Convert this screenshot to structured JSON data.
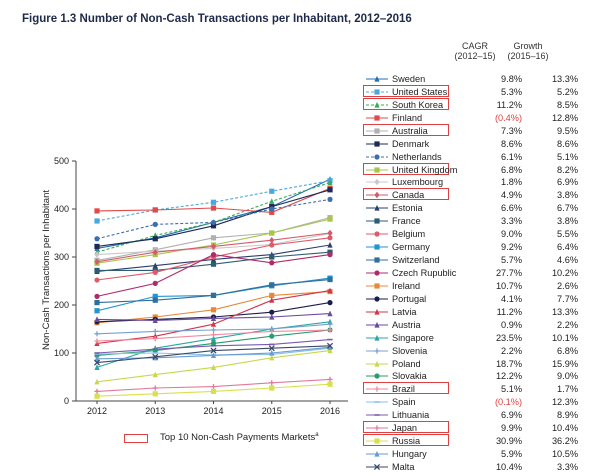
{
  "figure_title": "Figure 1.3 Number of Non-Cash Transactions per Inhabitant, 2012–2016",
  "columns": {
    "cagr": [
      "CAGR",
      "(2012–15)"
    ],
    "growth": [
      "Growth",
      "(2015–16)"
    ]
  },
  "top10_label": "Top 10 Non-Cash Payments Markets",
  "top10_footnote": "a",
  "chart_data": {
    "type": "line",
    "x": [
      2012,
      2013,
      2014,
      2015,
      2016
    ],
    "ylabel": "Non-Cash Transactions per Inhabitant",
    "ylim": [
      0,
      500
    ],
    "yticks": [
      0,
      100,
      200,
      300,
      400,
      500
    ],
    "grid": false,
    "legend_placement": "right",
    "series": [
      {
        "name": "Sweden",
        "cagr": "9.8%",
        "growth": "13.3%",
        "top10": false,
        "color": "#1f6fb4",
        "marker": "triangle",
        "dashed": false,
        "values": [
          318,
          340,
          372,
          405,
          462
        ]
      },
      {
        "name": "United States",
        "cagr": "5.3%",
        "growth": "5.2%",
        "top10": true,
        "color": "#4aa8e0",
        "marker": "square",
        "dashed": true,
        "values": [
          375,
          398,
          414,
          437,
          459
        ]
      },
      {
        "name": "South Korea",
        "cagr": "11.2%",
        "growth": "8.5%",
        "top10": true,
        "color": "#3aaa55",
        "marker": "triangle",
        "dashed": true,
        "values": [
          310,
          345,
          372,
          416,
          455
        ]
      },
      {
        "name": "Finland",
        "cagr": "(0.4%)",
        "growth": "12.8%",
        "top10": false,
        "color": "#e04a4a",
        "marker": "square",
        "dashed": false,
        "values": [
          396,
          398,
          402,
          393,
          443
        ]
      },
      {
        "name": "Australia",
        "cagr": "7.3%",
        "growth": "9.5%",
        "top10": true,
        "color": "#b0b0b0",
        "marker": "square",
        "dashed": false,
        "values": [
          293,
          315,
          340,
          350,
          382
        ]
      },
      {
        "name": "Denmark",
        "cagr": "8.6%",
        "growth": "8.6%",
        "top10": false,
        "color": "#1c2a55",
        "marker": "square",
        "dashed": false,
        "values": [
          322,
          338,
          365,
          405,
          440
        ]
      },
      {
        "name": "Netherlands",
        "cagr": "6.1%",
        "growth": "5.1%",
        "top10": false,
        "color": "#3d6fb0",
        "marker": "circle",
        "dashed": true,
        "values": [
          338,
          368,
          372,
          400,
          420
        ]
      },
      {
        "name": "United Kingdom",
        "cagr": "6.8%",
        "growth": "8.2%",
        "top10": true,
        "color": "#a6c64a",
        "marker": "square",
        "dashed": false,
        "values": [
          287,
          305,
          325,
          350,
          379
        ]
      },
      {
        "name": "Luxembourg",
        "cagr": "1.8%",
        "growth": "6.9%",
        "top10": false,
        "color": "#c8c8c8",
        "marker": "diamond",
        "dashed": false,
        "values": [
          305,
          312,
          318,
          326,
          349
        ]
      },
      {
        "name": "Canada",
        "cagr": "4.9%",
        "growth": "3.8%",
        "top10": true,
        "color": "#d65a6a",
        "marker": "diamond",
        "dashed": false,
        "values": [
          290,
          310,
          322,
          335,
          350
        ]
      },
      {
        "name": "Estonia",
        "cagr": "6.6%",
        "growth": "6.7%",
        "top10": false,
        "color": "#2a3f6e",
        "marker": "triangle",
        "dashed": false,
        "values": [
          270,
          282,
          295,
          305,
          325
        ]
      },
      {
        "name": "France",
        "cagr": "3.3%",
        "growth": "3.8%",
        "top10": false,
        "color": "#2e5d73",
        "marker": "square",
        "dashed": false,
        "values": [
          272,
          272,
          285,
          300,
          310
        ]
      },
      {
        "name": "Belgium",
        "cagr": "9.0%",
        "growth": "5.5%",
        "top10": false,
        "color": "#e05a6a",
        "marker": "circle",
        "dashed": false,
        "values": [
          252,
          268,
          300,
          325,
          340
        ]
      },
      {
        "name": "Germany",
        "cagr": "9.2%",
        "growth": "6.4%",
        "top10": false,
        "color": "#2196d3",
        "marker": "square",
        "dashed": false,
        "values": [
          188,
          218,
          220,
          240,
          256
        ]
      },
      {
        "name": "Switzerland",
        "cagr": "5.7%",
        "growth": "4.6%",
        "top10": false,
        "color": "#2f6f9c",
        "marker": "square",
        "dashed": false,
        "values": [
          205,
          210,
          220,
          242,
          253
        ]
      },
      {
        "name": "Czech Rupublic",
        "cagr": "27.7%",
        "growth": "10.2%",
        "top10": false,
        "color": "#b02a6a",
        "marker": "circle",
        "dashed": false,
        "values": [
          218,
          245,
          305,
          288,
          305
        ]
      },
      {
        "name": "Ireland",
        "cagr": "10.7%",
        "growth": "2.6%",
        "top10": false,
        "color": "#e8883a",
        "marker": "square",
        "dashed": false,
        "values": [
          163,
          175,
          190,
          220,
          228
        ]
      },
      {
        "name": "Portugal",
        "cagr": "4.1%",
        "growth": "7.7%",
        "top10": false,
        "color": "#1a1f4a",
        "marker": "circle",
        "dashed": false,
        "values": [
          165,
          170,
          175,
          185,
          205
        ]
      },
      {
        "name": "Latvia",
        "cagr": "11.2%",
        "growth": "13.3%",
        "top10": false,
        "color": "#d0364a",
        "marker": "triangle",
        "dashed": false,
        "values": [
          120,
          135,
          160,
          210,
          230
        ]
      },
      {
        "name": "Austria",
        "cagr": "0.9%",
        "growth": "2.2%",
        "top10": false,
        "color": "#6a4aa0",
        "marker": "triangle",
        "dashed": false,
        "values": [
          170,
          168,
          172,
          175,
          182
        ]
      },
      {
        "name": "Singapore",
        "cagr": "23.5%",
        "growth": "10.1%",
        "top10": false,
        "color": "#2aa8a0",
        "marker": "triangle",
        "dashed": false,
        "values": [
          70,
          110,
          130,
          150,
          165
        ]
      },
      {
        "name": "Slovenia",
        "cagr": "2.2%",
        "growth": "6.8%",
        "top10": false,
        "color": "#7aa0cf",
        "marker": "plus",
        "dashed": false,
        "values": [
          140,
          145,
          148,
          150,
          160
        ]
      },
      {
        "name": "Poland",
        "cagr": "18.7%",
        "growth": "15.9%",
        "top10": false,
        "color": "#c8d84a",
        "marker": "triangle",
        "dashed": false,
        "values": [
          40,
          55,
          70,
          90,
          105
        ]
      },
      {
        "name": "Slovakia",
        "cagr": "12.2%",
        "growth": "9.0%",
        "top10": false,
        "color": "#2a9a70",
        "marker": "circle",
        "dashed": false,
        "values": [
          95,
          105,
          120,
          135,
          148
        ]
      },
      {
        "name": "Brazil",
        "cagr": "5.1%",
        "growth": "1.7%",
        "top10": true,
        "color": "#f08aa0",
        "marker": "plus",
        "dashed": false,
        "values": [
          125,
          130,
          138,
          145,
          148
        ]
      },
      {
        "name": "Spain",
        "cagr": "(0.1%)",
        "growth": "12.3%",
        "top10": false,
        "color": "#8ac0e8",
        "marker": "dash",
        "dashed": false,
        "values": [
          98,
          100,
          96,
          97,
          110
        ]
      },
      {
        "name": "Lithuania",
        "cagr": "6.9%",
        "growth": "8.9%",
        "top10": false,
        "color": "#7a5ab0",
        "marker": "dash",
        "dashed": false,
        "values": [
          100,
          108,
          115,
          118,
          128
        ]
      },
      {
        "name": "Japan",
        "cagr": "9.9%",
        "growth": "10.4%",
        "top10": true,
        "color": "#e07a9a",
        "marker": "plus",
        "dashed": false,
        "values": [
          20,
          27,
          30,
          38,
          45
        ]
      },
      {
        "name": "Russia",
        "cagr": "30.9%",
        "growth": "36.2%",
        "top10": true,
        "color": "#d8e050",
        "marker": "square",
        "dashed": false,
        "values": [
          10,
          15,
          20,
          27,
          35
        ]
      },
      {
        "name": "Hungary",
        "cagr": "5.9%",
        "growth": "10.5%",
        "top10": false,
        "color": "#6a9ad0",
        "marker": "triangle",
        "dashed": false,
        "values": [
          88,
          90,
          95,
          100,
          112
        ]
      },
      {
        "name": "Malta",
        "cagr": "10.4%",
        "growth": "3.3%",
        "top10": false,
        "color": "#3a4a6a",
        "marker": "cross",
        "dashed": false,
        "values": [
          80,
          92,
          105,
          110,
          115
        ]
      }
    ]
  }
}
